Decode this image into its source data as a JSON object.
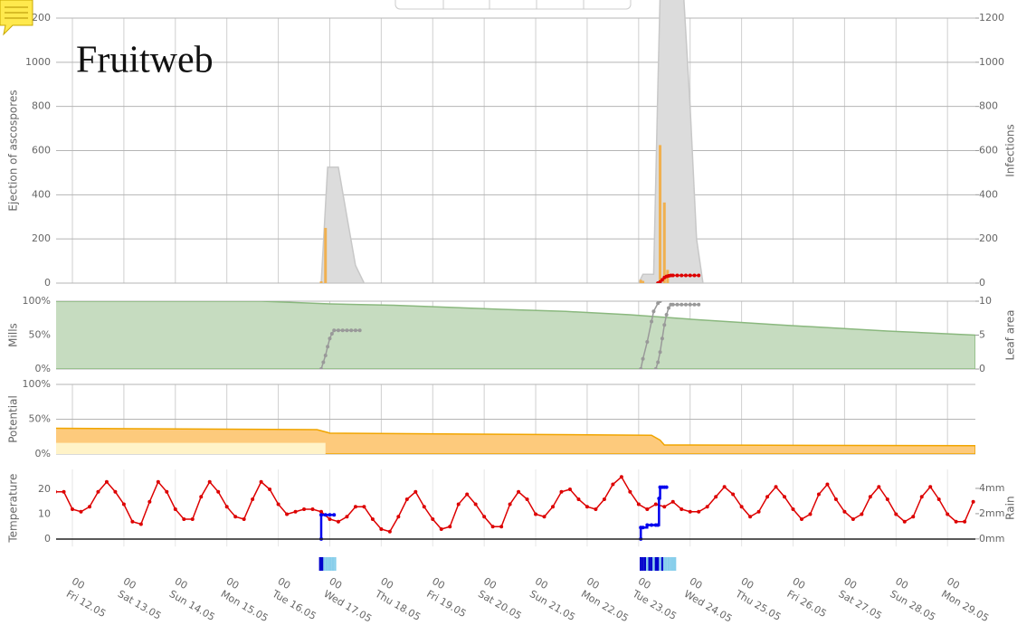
{
  "chart_data": [
    {
      "type": "combo",
      "title": "Fruitweb",
      "ylabel": "Ejection of ascospores",
      "y2label": "Infections",
      "ylim": [
        0,
        1200
      ],
      "yticks": [
        0,
        200,
        400,
        600,
        800,
        1000,
        1200
      ],
      "y2lim": [
        0,
        1200
      ],
      "y2ticks": [
        0,
        200,
        400,
        600,
        800,
        1000,
        1200
      ],
      "grid": true,
      "series": [
        {
          "kind": "area",
          "color": "#dcdcdc",
          "stroke": "#c8c8c8",
          "x": [
            116,
            119,
            124,
            128,
            132,
            136,
            null,
            264,
            266,
            268,
            271,
            273,
            274,
            285,
            288,
            291,
            294
          ],
          "values": [
            0,
            525,
            525,
            300,
            80,
            0,
            null,
            0,
            40,
            40,
            40,
            900,
            1300,
            1300,
            800,
            200,
            0
          ]
        },
        {
          "kind": "bar",
          "color": "#f0b050",
          "x": [
            116,
            118,
            265,
            266,
            274,
            276,
            277.5
          ],
          "values": [
            8,
            250,
            15,
            10,
            625,
            365,
            60
          ]
        },
        {
          "kind": "line",
          "color": "#dd0000",
          "axis": "y2",
          "markers": true,
          "x": [
            273,
            274,
            275,
            276,
            277,
            278,
            279,
            280,
            282,
            284,
            286,
            288,
            290,
            292
          ],
          "values": [
            0,
            5,
            15,
            25,
            30,
            33,
            35,
            35,
            35,
            35,
            35,
            35,
            35,
            35
          ]
        }
      ]
    },
    {
      "type": "combo",
      "ylabel": "Mills",
      "y2label": "Leaf area",
      "ylim": [
        0,
        100
      ],
      "yticks": [
        {
          "value": 0,
          "label": "0%"
        },
        {
          "value": 50,
          "label": "50%"
        },
        {
          "value": 100,
          "label": "100%"
        }
      ],
      "y2lim": [
        0,
        10
      ],
      "y2ticks": [
        0,
        5,
        10
      ],
      "grid": true,
      "series": [
        {
          "kind": "area",
          "color": "#c6dcc0",
          "stroke": "#8ab87e",
          "axis": "y2",
          "x": [
            -8,
            88,
            120,
            150,
            200,
            230,
            260,
            290,
            330,
            380,
            421
          ],
          "values": [
            10,
            10,
            9.6,
            9.4,
            8.8,
            8.5,
            8.0,
            7.3,
            6.5,
            5.6,
            5.0
          ]
        },
        {
          "kind": "line",
          "color": "#999999",
          "markers": true,
          "x": [
            116,
            117,
            118,
            119,
            120,
            121,
            122,
            124,
            126,
            128,
            130,
            132,
            134
          ],
          "values": [
            0,
            10,
            20,
            33,
            45,
            52,
            57,
            57,
            57,
            57,
            57,
            57,
            57
          ]
        },
        {
          "kind": "line",
          "color": "#999999",
          "markers": true,
          "x": [
            265,
            266,
            268,
            270,
            271,
            273,
            274
          ],
          "values": [
            0,
            15,
            40,
            70,
            85,
            97,
            100
          ]
        },
        {
          "kind": "line",
          "color": "#999999",
          "markers": true,
          "x": [
            272,
            273,
            274,
            275,
            276,
            277,
            278,
            279,
            280,
            282,
            284,
            286,
            288,
            290,
            292
          ],
          "values": [
            0,
            10,
            25,
            45,
            65,
            80,
            90,
            95,
            95,
            95,
            95,
            95,
            95,
            95,
            95
          ]
        }
      ]
    },
    {
      "type": "combo",
      "ylabel": "Potential",
      "ylim": [
        0,
        100
      ],
      "yticks": [
        {
          "value": 0,
          "label": "0%"
        },
        {
          "value": 50,
          "label": "50%"
        },
        {
          "value": 100,
          "label": "100%"
        }
      ],
      "grid": true,
      "series": [
        {
          "kind": "area",
          "color": "#fdca7c",
          "stroke": "#f0a500",
          "x": [
            -8,
            114,
            119,
            120,
            270,
            274,
            276,
            421
          ],
          "values": [
            37,
            35,
            31,
            30,
            27,
            20,
            13,
            12
          ]
        },
        {
          "kind": "area",
          "color": "#fff3c8",
          "x": [
            -8,
            118
          ],
          "values": [
            16,
            16
          ]
        }
      ]
    },
    {
      "type": "combo",
      "ylabel": "Temperature",
      "y2label": "Rain",
      "ylim": [
        -3,
        28
      ],
      "yticks": [
        0,
        10,
        20
      ],
      "y2lim": [
        -0.6,
        5.5
      ],
      "y2ticks": [
        {
          "value": 0,
          "label": "0mm"
        },
        {
          "value": 2,
          "label": "2mm"
        },
        {
          "value": 4,
          "label": "4mm"
        }
      ],
      "grid": false,
      "zero_line": true,
      "xlim": [
        -7.6,
        421
      ],
      "xticks": [
        {
          "value": 0,
          "label": "00"
        },
        {
          "value": 24,
          "label": "00"
        },
        {
          "value": 48,
          "label": "00"
        },
        {
          "value": 72,
          "label": "00"
        },
        {
          "value": 96,
          "label": "00"
        },
        {
          "value": 120,
          "label": "00"
        },
        {
          "value": 144,
          "label": "00"
        },
        {
          "value": 168,
          "label": "00"
        },
        {
          "value": 192,
          "label": "00"
        },
        {
          "value": 216,
          "label": "00"
        },
        {
          "value": 240,
          "label": "00"
        },
        {
          "value": 264,
          "label": "00"
        },
        {
          "value": 288,
          "label": "00"
        },
        {
          "value": 312,
          "label": "00"
        },
        {
          "value": 336,
          "label": "00"
        },
        {
          "value": 360,
          "label": "00"
        },
        {
          "value": 384,
          "label": "00"
        },
        {
          "value": 408,
          "label": "00"
        }
      ],
      "xtick_days": [
        "Fri 12.05",
        "Sat 13.05",
        "Sun 14.05",
        "Mon 15.05",
        "Tue 16.05",
        "Wed 17.05",
        "Thu 18.05",
        "Fri 19.05",
        "Sat 20.05",
        "Sun 21.05",
        "Mon 22.05",
        "Tue 23.05",
        "Wed 24.05",
        "Thu 25.05",
        "Fri 26.05",
        "Sat 27.05",
        "Sun 28.05",
        "Mon 29.05"
      ],
      "series": [
        {
          "kind": "line",
          "color": "#dd0000",
          "markers": true,
          "x": [
            -8,
            -4,
            0,
            4,
            8,
            12,
            16,
            20,
            24,
            28,
            32,
            36,
            40,
            44,
            48,
            52,
            56,
            60,
            64,
            68,
            72,
            76,
            80,
            84,
            88,
            92,
            96,
            100,
            104,
            108,
            112,
            116,
            120,
            124,
            128,
            132,
            136,
            140,
            144,
            148,
            152,
            156,
            160,
            164,
            168,
            172,
            176,
            180,
            184,
            188,
            192,
            196,
            200,
            204,
            208,
            212,
            216,
            220,
            224,
            228,
            232,
            236,
            240,
            244,
            248,
            252,
            256,
            260,
            264,
            268,
            272,
            276,
            280,
            284,
            288,
            292,
            296,
            300,
            304,
            308,
            312,
            316,
            320,
            324,
            328,
            332,
            336,
            340,
            344,
            348,
            352,
            356,
            360,
            364,
            368,
            372,
            376,
            380,
            384,
            388,
            392,
            396,
            400,
            404,
            408,
            412,
            416,
            420
          ],
          "values": [
            19,
            19,
            12,
            11,
            13,
            19,
            23,
            19,
            14,
            7,
            6,
            15,
            23,
            19,
            12,
            8,
            8,
            17,
            23,
            19,
            13,
            9,
            8,
            16,
            23,
            20,
            14,
            10,
            11,
            12,
            12,
            11,
            8,
            7,
            9,
            13,
            13,
            8,
            4,
            3,
            9,
            16,
            19,
            13,
            8,
            4,
            5,
            14,
            18,
            14,
            9,
            5,
            5,
            14,
            19,
            16,
            10,
            9,
            13,
            19,
            20,
            16,
            13,
            12,
            16,
            22,
            25,
            19,
            14,
            12,
            14,
            13,
            15,
            12,
            11,
            11,
            13,
            17,
            21,
            18,
            13,
            9,
            11,
            17,
            21,
            17,
            12,
            8,
            10,
            18,
            22,
            16,
            11,
            8,
            10,
            17,
            21,
            16,
            10,
            7,
            9,
            17,
            21,
            16,
            10,
            7,
            7,
            15
          ]
        },
        {
          "kind": "line",
          "color": "#0000ee",
          "axis": "y2",
          "markers": true,
          "step": true,
          "x": [
            116,
            116,
            118,
            120,
            122,
            null,
            265,
            265,
            266,
            268,
            270,
            272,
            273,
            273.5,
            274,
            275,
            276,
            277
          ],
          "values": [
            0,
            1.9,
            1.9,
            1.9,
            1.9,
            null,
            0,
            0.9,
            0.9,
            1.1,
            1.1,
            1.1,
            1.1,
            3.2,
            4.1,
            4.1,
            4.1,
            4.1
          ]
        }
      ],
      "strips": [
        {
          "color": "#0000cc",
          "x": [
            115.5,
            116.5,
            265,
            266,
            267,
            269,
            270,
            272,
            273,
            275
          ]
        },
        {
          "color": "#87ceeb",
          "x": [
            117.5,
            118.5,
            119.5,
            120.5,
            121.5,
            122.5,
            268,
            271,
            274,
            276,
            277,
            278,
            279,
            280,
            281
          ]
        }
      ]
    }
  ]
}
